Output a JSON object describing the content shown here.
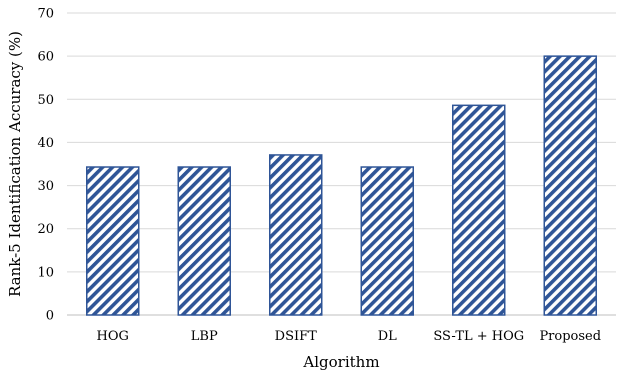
{
  "chart_data": {
    "type": "bar",
    "title": "",
    "xlabel": "Algorithm",
    "ylabel": "Rank-5 Identification Accuracy (%)",
    "categories": [
      "HOG",
      "LBP",
      "DSIFT",
      "DL",
      "SS-TL + HOG",
      "Proposed"
    ],
    "values": [
      34.3,
      34.3,
      37.1,
      34.3,
      48.6,
      60.0
    ],
    "ylim": [
      0,
      70
    ],
    "yticks": [
      0,
      10,
      20,
      30,
      40,
      50,
      60,
      70
    ],
    "grid": true,
    "legend": "none",
    "colors": {
      "bar_stroke": "#2f5597",
      "bar_hatch": "#2f5597",
      "bar_background": "#ffffff"
    }
  }
}
